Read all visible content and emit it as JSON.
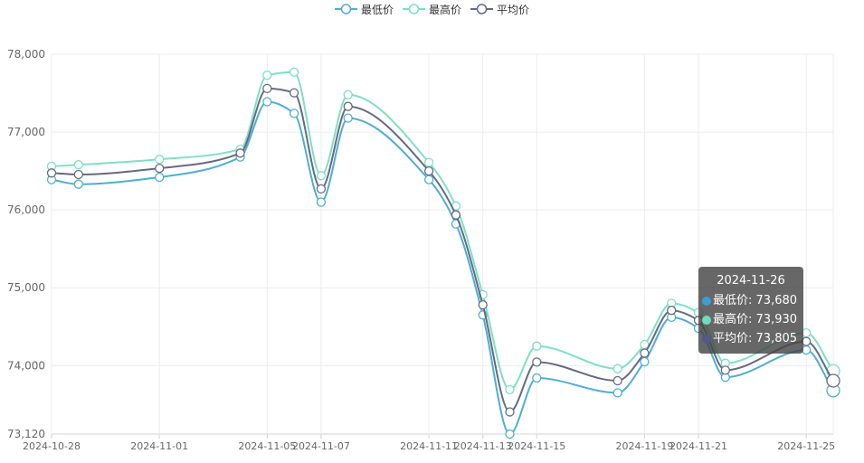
{
  "legend": {
    "items": [
      {
        "label": "最低价",
        "color": "#4fadd4"
      },
      {
        "label": "最高价",
        "color": "#7ee0c3"
      },
      {
        "label": "平均价",
        "color": "#666a80"
      }
    ]
  },
  "tooltip": {
    "title": "2024-11-26",
    "rows": [
      {
        "name": "最低价",
        "value": "73,680",
        "color": "#3a9fd6"
      },
      {
        "name": "最高价",
        "value": "73,930",
        "color": "#6fdcbb"
      },
      {
        "name": "平均价",
        "value": "73,805",
        "color": "#4d5a8a"
      }
    ]
  },
  "chart_data": {
    "type": "line",
    "title": "",
    "xlabel": "",
    "ylabel": "",
    "ylim": [
      73120,
      78000
    ],
    "y_ticks": [
      "73,120",
      "74,000",
      "75,000",
      "76,000",
      "77,000",
      "78,000"
    ],
    "x_tick_labels": [
      "2024-10-28",
      "2024-11-01",
      "2024-11-05",
      "2024-11-07",
      "2024-11-11",
      "2024-11-13",
      "2024-11-15",
      "2024-11-19",
      "2024-11-21",
      "2024-11-25"
    ],
    "x": [
      "2024-10-28",
      "2024-10-29",
      "2024-11-01",
      "2024-11-04",
      "2024-11-05",
      "2024-11-06",
      "2024-11-07",
      "2024-11-08",
      "2024-11-11",
      "2024-11-12",
      "2024-11-13",
      "2024-11-14",
      "2024-11-15",
      "2024-11-18",
      "2024-11-19",
      "2024-11-20",
      "2024-11-21",
      "2024-11-22",
      "2024-11-25",
      "2024-11-26"
    ],
    "grid": true,
    "legend_position": "top-center",
    "series": [
      {
        "name": "最低价",
        "color": "#4fadd4",
        "values": [
          76390,
          76330,
          76420,
          76680,
          77390,
          77240,
          76100,
          77180,
          76390,
          75820,
          74650,
          73120,
          73840,
          73650,
          74050,
          74620,
          74480,
          73850,
          74200,
          73680
        ]
      },
      {
        "name": "最高价",
        "color": "#7ee0c3",
        "values": [
          76560,
          76580,
          76650,
          76780,
          77730,
          77770,
          76440,
          77480,
          76610,
          76050,
          74910,
          73690,
          74250,
          73960,
          74270,
          74800,
          74680,
          74030,
          74420,
          73930
        ]
      },
      {
        "name": "平均价",
        "color": "#666a80",
        "values": [
          76475,
          76455,
          76535,
          76730,
          77560,
          77505,
          76270,
          77330,
          76500,
          75935,
          74780,
          73405,
          74045,
          73805,
          74160,
          74710,
          74580,
          73940,
          74310,
          73805
        ]
      }
    ]
  }
}
